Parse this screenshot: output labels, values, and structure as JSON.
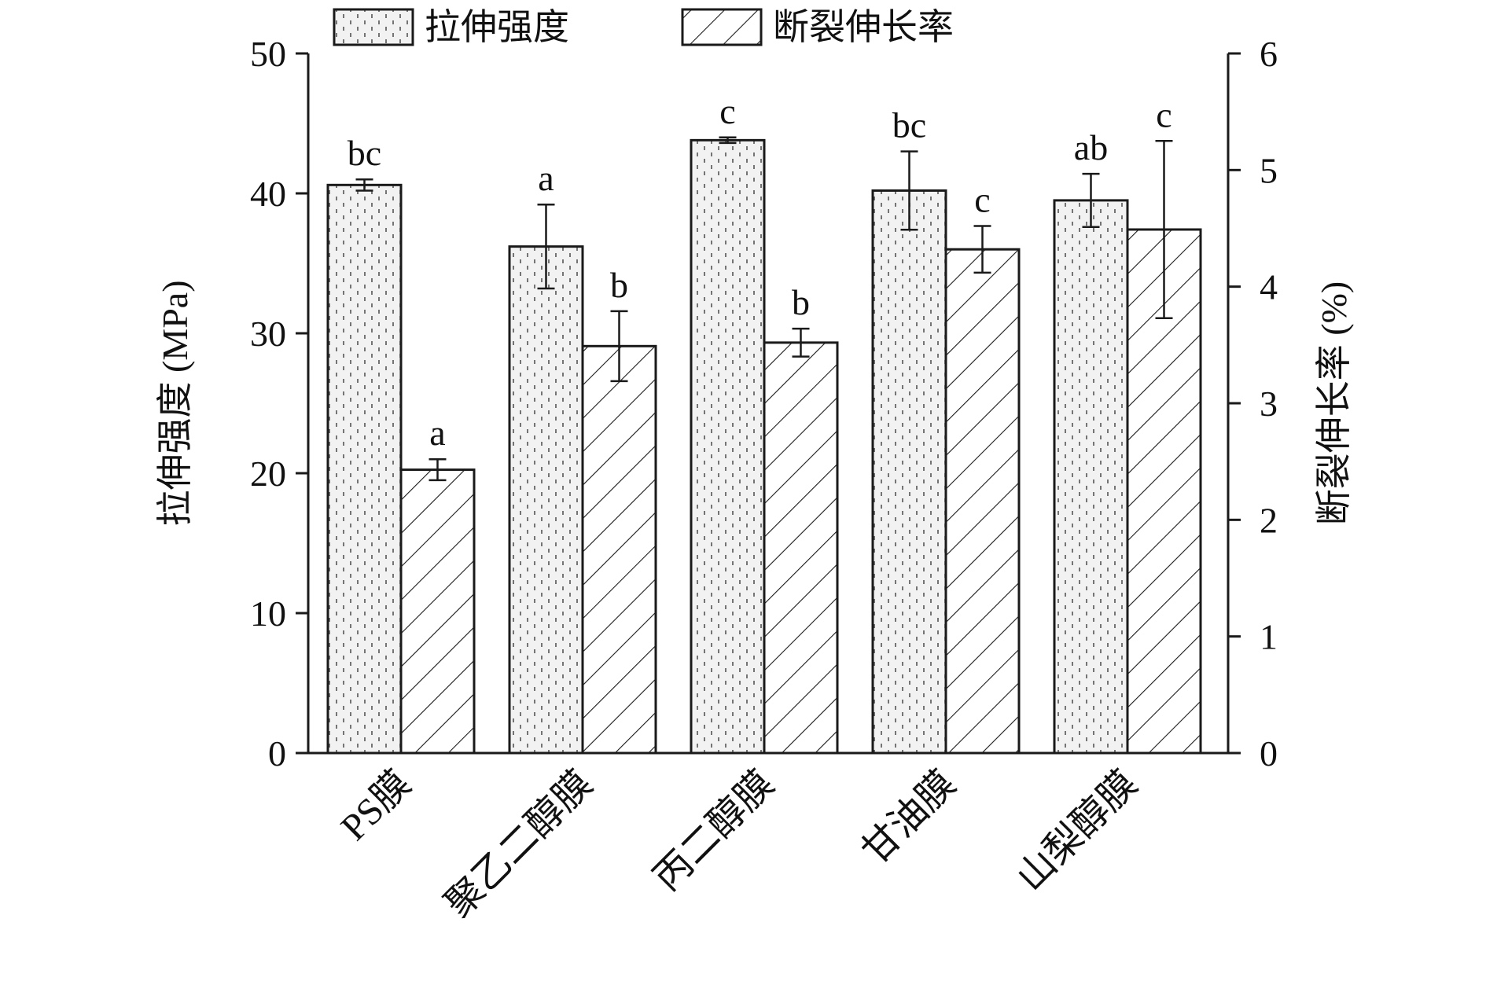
{
  "chart_data": {
    "type": "bar",
    "categories": [
      "PS膜",
      "聚乙二醇膜",
      "丙二醇膜",
      "甘油膜",
      "山梨醇膜"
    ],
    "series": [
      {
        "name": "拉伸强度",
        "axis": "left",
        "pattern": "dots",
        "values": [
          40.6,
          36.2,
          43.8,
          40.2,
          39.5
        ],
        "errors": [
          0.4,
          3.0,
          0.2,
          2.8,
          1.9
        ],
        "letters": [
          "bc",
          "a",
          "c",
          "bc",
          "ab"
        ]
      },
      {
        "name": "断裂伸长率",
        "axis": "right",
        "pattern": "hatch",
        "values": [
          2.43,
          3.49,
          3.52,
          4.32,
          4.49
        ],
        "errors": [
          0.09,
          0.3,
          0.12,
          0.2,
          0.76
        ],
        "letters": [
          "a",
          "b",
          "b",
          "c",
          "c"
        ]
      }
    ],
    "ylabel_left": "拉伸强度 (MPa)",
    "ylabel_right": "断裂伸长率 (%)",
    "ylim_left": [
      0,
      50
    ],
    "ylim_right": [
      0,
      6
    ],
    "yticks_left": [
      "0",
      "10",
      "20",
      "30",
      "40",
      "50"
    ],
    "yticks_right": [
      "0",
      "1",
      "2",
      "3",
      "4",
      "5",
      "6"
    ],
    "legend_position": "top",
    "grid": false,
    "colors": {
      "bar_fill": "#f2f2f2",
      "stroke": "#1a1a1a"
    }
  }
}
